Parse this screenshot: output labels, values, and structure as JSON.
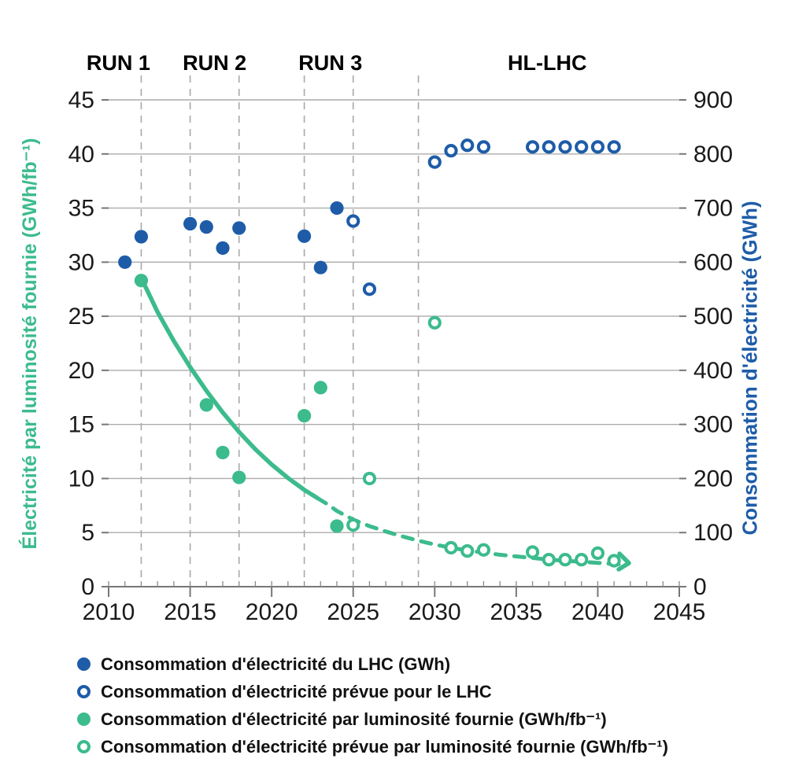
{
  "chart_data": {
    "type": "scatter",
    "background": "#ffffff",
    "grid": true,
    "period_labels": [
      {
        "label": "RUN 1",
        "center_year": 2010.6
      },
      {
        "label": "RUN 2",
        "center_year": 2016.5
      },
      {
        "label": "RUN 3",
        "center_year": 2023.6
      },
      {
        "label": "HL-LHC",
        "center_year": 2036.9
      }
    ],
    "dashed_year_lines": [
      2012,
      2015,
      2018,
      2022,
      2025,
      2029
    ],
    "x_axis": {
      "min": 2010,
      "max": 2045,
      "major_tick_step": 5,
      "minor_tick_step": 1,
      "tick_labels": [
        "2010",
        "2015",
        "2020",
        "2025",
        "2030",
        "2035",
        "2040",
        "2045"
      ]
    },
    "y_left": {
      "label": "Électricité par luminosité fournie (GWh/fb⁻¹)",
      "min": 0,
      "max": 45,
      "tick_step": 5,
      "color": "#3cbb8d",
      "tick_labels": [
        "0",
        "5",
        "10",
        "15",
        "20",
        "25",
        "30",
        "35",
        "40",
        "45"
      ]
    },
    "y_right": {
      "label": "Consommation d'électricité (GWh)",
      "min": 0,
      "max": 900,
      "tick_step": 100,
      "color": "#1e5ca8",
      "tick_labels": [
        "0",
        "100",
        "200",
        "300",
        "400",
        "500",
        "600",
        "700",
        "800",
        "900"
      ]
    },
    "series": [
      {
        "id": "lhc-actual",
        "legend": "Consommation d'électricité du LHC (GWh)",
        "axis": "right",
        "marker": "filled",
        "color": "#1e5ca8",
        "points": [
          [
            2011,
            600
          ],
          [
            2012,
            647
          ],
          [
            2015,
            671
          ],
          [
            2016,
            665
          ],
          [
            2017,
            626
          ],
          [
            2018,
            663
          ],
          [
            2022,
            648
          ],
          [
            2023,
            590
          ],
          [
            2024,
            700
          ]
        ]
      },
      {
        "id": "lhc-predicted",
        "legend": "Consommation d'électricité prévue pour le LHC",
        "axis": "right",
        "marker": "open",
        "color": "#1e5ca8",
        "points": [
          [
            2025,
            676
          ],
          [
            2026,
            550
          ],
          [
            2030,
            785
          ],
          [
            2031,
            806
          ],
          [
            2032,
            816
          ],
          [
            2033,
            813
          ],
          [
            2036,
            813
          ],
          [
            2037,
            813
          ],
          [
            2038,
            813
          ],
          [
            2039,
            813
          ],
          [
            2040,
            813
          ],
          [
            2041,
            813
          ]
        ]
      },
      {
        "id": "ratio-actual",
        "legend": "Consommation d'électricité par luminosité fournie (GWh/fb⁻¹)",
        "axis": "left",
        "marker": "filled",
        "color": "#3cbb8d",
        "points": [
          [
            2012,
            28.3
          ],
          [
            2016,
            16.8
          ],
          [
            2017,
            12.4
          ],
          [
            2018,
            10.1
          ],
          [
            2022,
            15.8
          ],
          [
            2023,
            18.4
          ],
          [
            2024,
            5.6
          ]
        ]
      },
      {
        "id": "ratio-predicted",
        "legend": "Consommation d'électricité prévue par luminosité fournie (GWh/fb⁻¹)",
        "axis": "left",
        "marker": "open",
        "color": "#3cbb8d",
        "points": [
          [
            2025,
            5.7
          ],
          [
            2026,
            10.0
          ],
          [
            2030,
            24.4
          ],
          [
            2031,
            3.6
          ],
          [
            2032,
            3.3
          ],
          [
            2033,
            3.4
          ],
          [
            2036,
            3.2
          ],
          [
            2037,
            2.5
          ],
          [
            2038,
            2.5
          ],
          [
            2039,
            2.5
          ],
          [
            2040,
            3.1
          ],
          [
            2041,
            2.4
          ]
        ]
      }
    ],
    "trend_curve": {
      "axis": "left",
      "color": "#3cbb8d",
      "arrow_end": true,
      "solid": [
        [
          2012,
          28.5
        ],
        [
          2012.3,
          27.6
        ],
        [
          2013,
          25.4
        ],
        [
          2014,
          22.7
        ],
        [
          2015,
          20.3
        ],
        [
          2016,
          18.1
        ],
        [
          2017,
          16.1
        ],
        [
          2018,
          14.3
        ],
        [
          2019,
          12.7
        ],
        [
          2020,
          11.3
        ],
        [
          2021,
          10.05
        ],
        [
          2022,
          8.95
        ],
        [
          2022.8,
          8.2
        ]
      ],
      "dashed": [
        [
          2022.8,
          8.2
        ],
        [
          2023.5,
          7.55
        ],
        [
          2024,
          7.0
        ],
        [
          2025,
          6.2
        ],
        [
          2026,
          5.6
        ],
        [
          2027,
          5.1
        ],
        [
          2028,
          4.65
        ],
        [
          2029,
          4.25
        ],
        [
          2030,
          3.9
        ],
        [
          2031,
          3.6
        ],
        [
          2032,
          3.35
        ],
        [
          2033,
          3.15
        ],
        [
          2034,
          2.95
        ],
        [
          2035,
          2.8
        ],
        [
          2036,
          2.65
        ],
        [
          2037,
          2.5
        ],
        [
          2038,
          2.4
        ],
        [
          2039,
          2.3
        ],
        [
          2040,
          2.2
        ],
        [
          2041,
          2.1
        ],
        [
          2041.6,
          2.05
        ]
      ]
    },
    "colors": {
      "gridline": "#ababab",
      "dashed_line": "#a8a8a8",
      "axis": "#777777",
      "tick_text": "#1a1a1a"
    }
  }
}
